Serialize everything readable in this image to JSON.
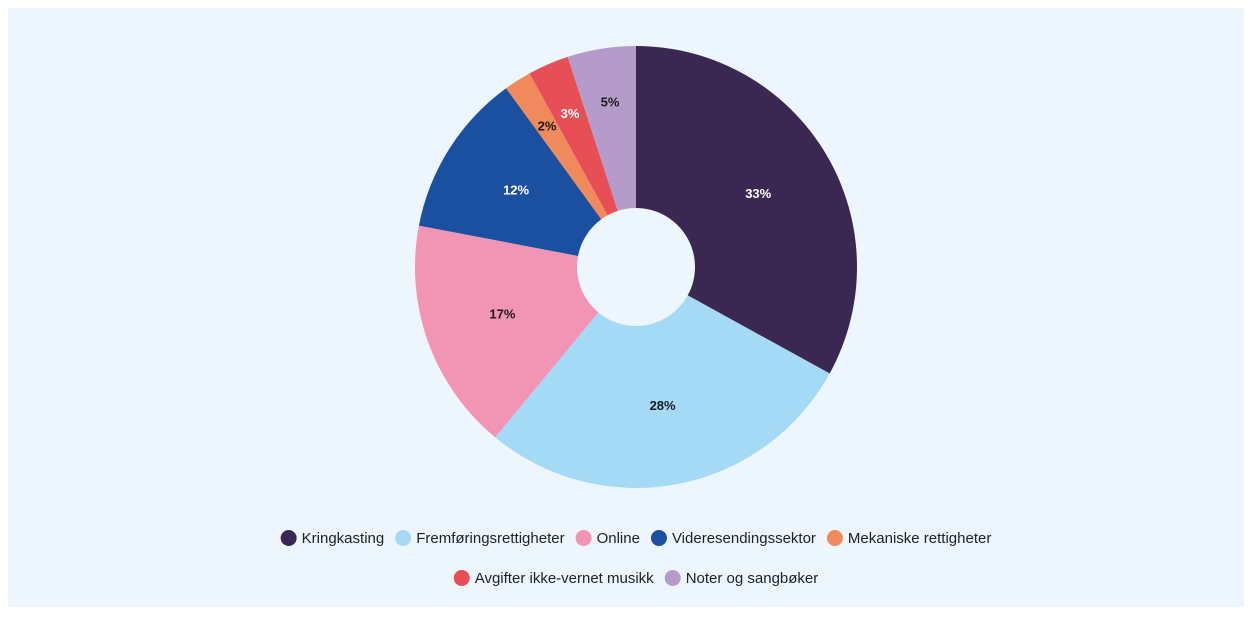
{
  "chart_data": {
    "type": "pie",
    "categories": [
      "Kringkasting",
      "Fremføringsrettigheter",
      "Online",
      "Videresendingssektor",
      "Mekaniske rettigheter",
      "Avgifter ikke-vernet musikk",
      "Noter og sangbøker"
    ],
    "values": [
      33,
      28,
      17,
      12,
      2,
      3,
      5
    ],
    "value_labels": [
      "33%",
      "28%",
      "17%",
      "12%",
      "2%",
      "3%",
      "5%"
    ],
    "colors": [
      "#3a2853",
      "#a4daf6",
      "#f294b3",
      "#1b4fa0",
      "#f08a5c",
      "#e84e55",
      "#b59bc9"
    ],
    "donut": true,
    "legend": "bottom"
  }
}
